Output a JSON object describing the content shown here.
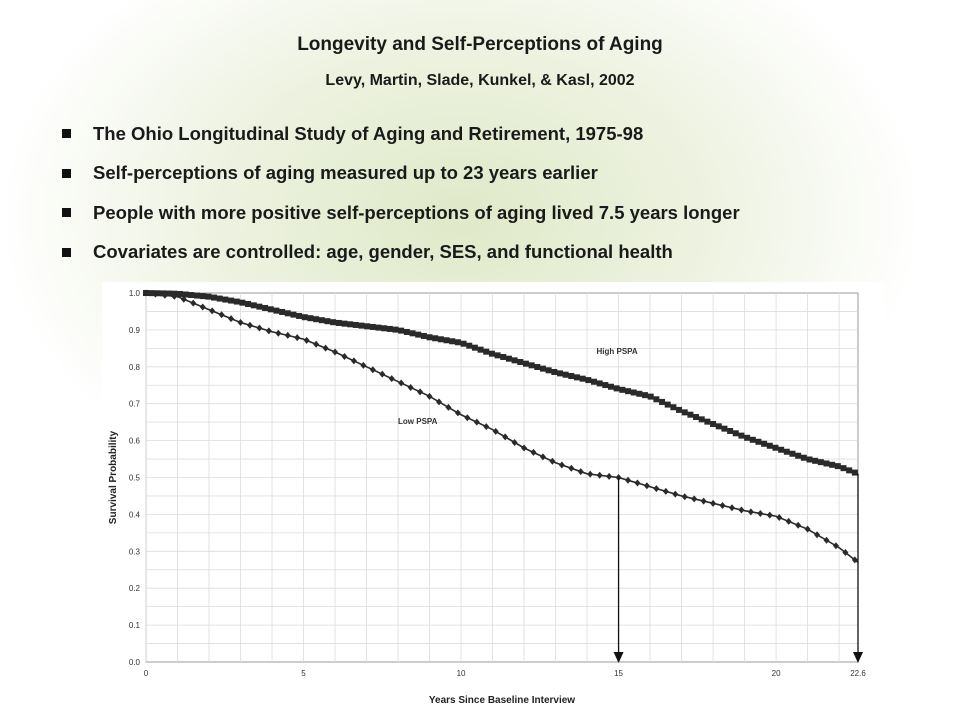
{
  "slide": {
    "title": "Longevity and Self-Perceptions of Aging",
    "subtitle": "Levy, Martin, Slade, Kunkel, & Kasl, 2002",
    "bullets": [
      "The Ohio Longitudinal Study of Aging and Retirement, 1975-98",
      "Self-perceptions of aging measured up to 23 years earlier",
      "People with more positive self-perceptions of aging lived 7.5 years longer",
      "Covariates are controlled: age, gender, SES, and functional health"
    ]
  },
  "chart_data": {
    "type": "line",
    "title": "",
    "xlabel": "Years Since Baseline Interview",
    "ylabel": "Survival Probability",
    "xlim": [
      0,
      22.6
    ],
    "ylim": [
      0,
      1
    ],
    "grid": true,
    "x_ticks": [
      "0",
      "5",
      "10",
      "15",
      "20",
      "22.6"
    ],
    "x_tick_values": [
      0,
      5,
      10,
      15,
      20,
      22.6
    ],
    "y_ticks": [
      "0.0",
      "0.1",
      "0.2",
      "0.3",
      "0.4",
      "0.5",
      "0.6",
      "0.7",
      "0.8",
      "0.9",
      "1.0"
    ],
    "series": [
      {
        "name": "High PSPA",
        "marker": "square",
        "color": "#2a2a2a",
        "x": [
          0,
          1,
          2,
          3,
          4,
          5,
          6,
          7,
          8,
          9,
          10,
          11,
          12,
          13,
          14,
          15,
          16,
          17,
          18,
          19,
          20,
          21,
          22,
          22.6
        ],
        "y": [
          1.0,
          0.998,
          0.99,
          0.975,
          0.955,
          0.935,
          0.92,
          0.91,
          0.9,
          0.88,
          0.865,
          0.835,
          0.81,
          0.785,
          0.765,
          0.74,
          0.72,
          0.68,
          0.645,
          0.61,
          0.58,
          0.55,
          0.53,
          0.51
        ]
      },
      {
        "name": "Low PSPA",
        "marker": "diamond",
        "color": "#2a2a2a",
        "x": [
          0,
          1,
          2,
          3,
          4,
          5,
          6,
          7,
          8,
          9,
          10,
          11,
          12,
          13,
          14,
          15,
          16,
          17,
          18,
          19,
          20,
          21,
          22,
          22.6
        ],
        "y": [
          1.0,
          0.99,
          0.955,
          0.92,
          0.895,
          0.875,
          0.84,
          0.8,
          0.76,
          0.72,
          0.67,
          0.63,
          0.58,
          0.54,
          0.51,
          0.5,
          0.475,
          0.45,
          0.43,
          0.41,
          0.395,
          0.36,
          0.31,
          0.27
        ]
      }
    ],
    "annotations": [
      {
        "text": "High PSPA",
        "x": 14.3,
        "y": 0.835
      },
      {
        "text": "Low PSPA",
        "x": 8.0,
        "y": 0.645
      }
    ],
    "arrows": [
      {
        "x": 15,
        "from": 0.5,
        "to": 0
      },
      {
        "x": 22.6,
        "from": 0.51,
        "to": 0
      }
    ]
  }
}
